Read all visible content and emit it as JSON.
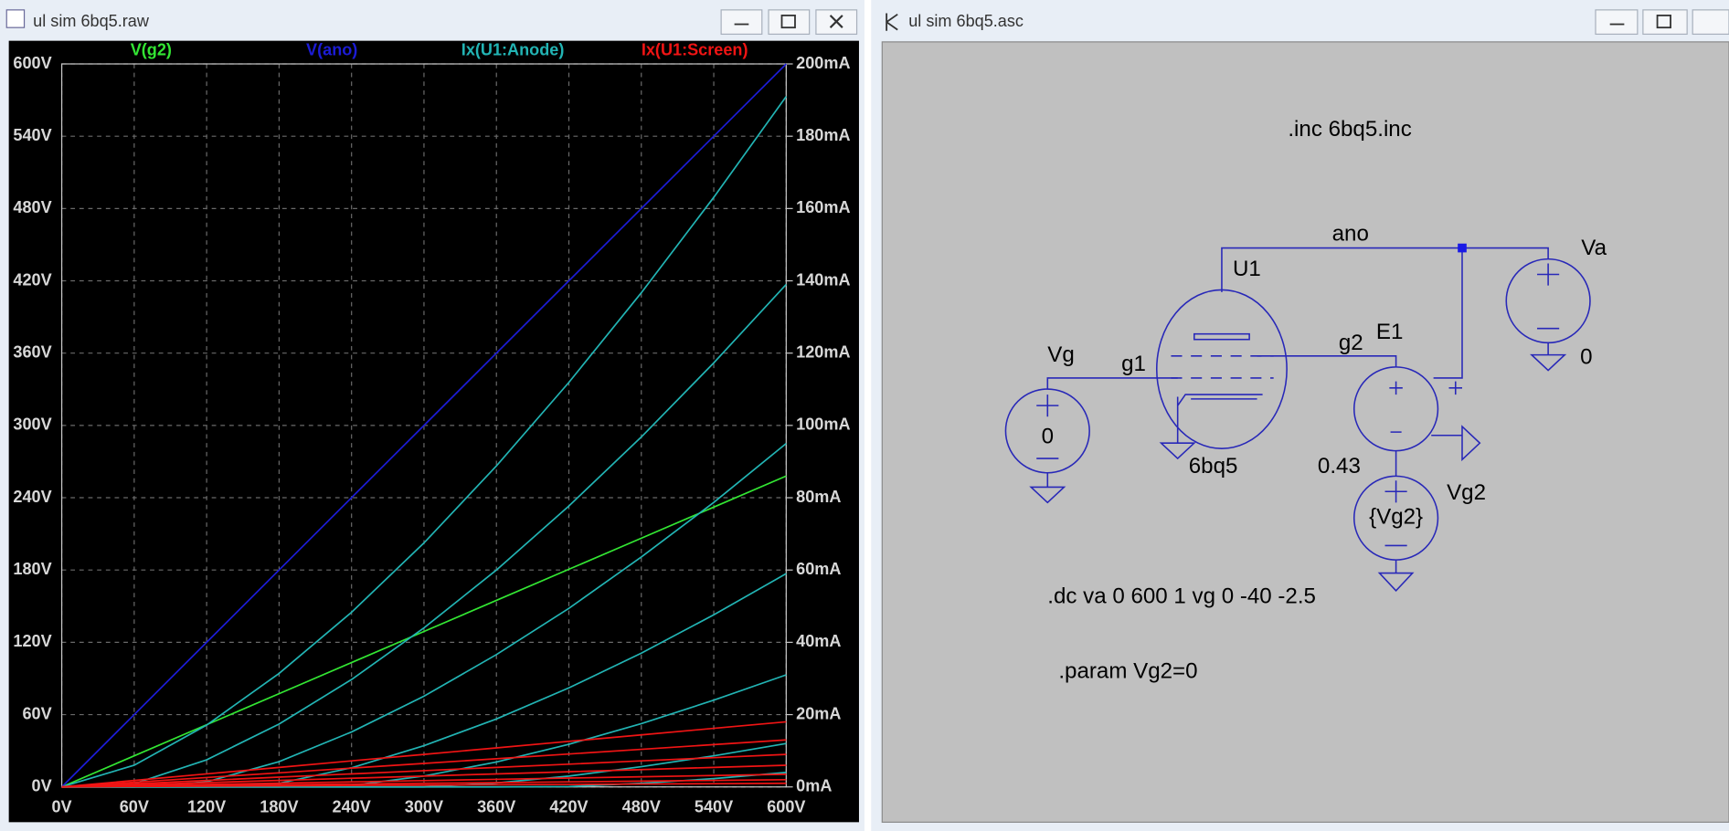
{
  "windows": [
    {
      "title": "ul sim 6bq5.raw"
    },
    {
      "title": "ul sim 6bq5.asc"
    }
  ],
  "chart_data": {
    "type": "line",
    "x": [
      0,
      60,
      120,
      180,
      240,
      300,
      360,
      420,
      480,
      540,
      600
    ],
    "xlim": [
      0,
      600
    ],
    "xticks": [
      {
        "value": 0,
        "label": "0V"
      },
      {
        "value": 60,
        "label": "60V"
      },
      {
        "value": 120,
        "label": "120V"
      },
      {
        "value": 180,
        "label": "180V"
      },
      {
        "value": 240,
        "label": "240V"
      },
      {
        "value": 300,
        "label": "300V"
      },
      {
        "value": 360,
        "label": "360V"
      },
      {
        "value": 420,
        "label": "420V"
      },
      {
        "value": 480,
        "label": "480V"
      },
      {
        "value": 540,
        "label": "540V"
      },
      {
        "value": 600,
        "label": "600V"
      }
    ],
    "ylim": [
      0,
      600
    ],
    "yticks": [
      {
        "value": 0,
        "label": "0V"
      },
      {
        "value": 60,
        "label": "60V"
      },
      {
        "value": 120,
        "label": "120V"
      },
      {
        "value": 180,
        "label": "180V"
      },
      {
        "value": 240,
        "label": "240V"
      },
      {
        "value": 300,
        "label": "300V"
      },
      {
        "value": 360,
        "label": "360V"
      },
      {
        "value": 420,
        "label": "420V"
      },
      {
        "value": 480,
        "label": "480V"
      },
      {
        "value": 540,
        "label": "540V"
      },
      {
        "value": 600,
        "label": "600V"
      }
    ],
    "y2lim": [
      0,
      200
    ],
    "y2ticks": [
      {
        "value": 0,
        "label": "0mA"
      },
      {
        "value": 20,
        "label": "20mA"
      },
      {
        "value": 40,
        "label": "40mA"
      },
      {
        "value": 60,
        "label": "60mA"
      },
      {
        "value": 80,
        "label": "80mA"
      },
      {
        "value": 100,
        "label": "100mA"
      },
      {
        "value": 120,
        "label": "120mA"
      },
      {
        "value": 140,
        "label": "140mA"
      },
      {
        "value": 160,
        "label": "160mA"
      },
      {
        "value": 180,
        "label": "180mA"
      },
      {
        "value": 200,
        "label": "200mA"
      }
    ],
    "grid": true,
    "series": [
      {
        "name": "V(g2)",
        "color": "#33e633",
        "values": [
          0,
          25.8,
          51.6,
          77.4,
          103.2,
          129,
          154.8,
          180.6,
          206.4,
          232.2,
          258
        ]
      },
      {
        "name": "V(ano)",
        "color": "#1c1cd6",
        "values": [
          0,
          60,
          120,
          180,
          240,
          300,
          360,
          420,
          480,
          540,
          600
        ]
      },
      {
        "name": "Ix(U1:Anode)",
        "color": "#22b4b4",
        "axis": "y2",
        "values": [
          [
            0,
            6,
            17.1,
            31.4,
            48.3,
            67.5,
            88.8,
            111.9,
            136.7,
            163.1,
            191
          ],
          [
            0,
            0.9,
            7.5,
            17.4,
            29.7,
            44,
            60,
            77.7,
            96.8,
            117.3,
            139
          ],
          [
            0,
            0,
            1.4,
            7,
            15.2,
            25.1,
            36.6,
            49.4,
            63.6,
            78.7,
            95
          ],
          [
            0,
            0,
            0,
            1,
            5.3,
            11.4,
            18.8,
            27.4,
            37,
            47.6,
            59
          ],
          [
            0,
            0,
            0,
            0,
            0.4,
            3,
            6.9,
            11.8,
            17.5,
            24,
            31
          ],
          [
            0,
            0,
            0,
            0,
            0,
            0,
            1.1,
            3,
            5.6,
            8.6,
            12
          ],
          [
            0,
            0,
            0,
            0,
            0,
            0,
            0,
            0.1,
            1,
            2.3,
            4
          ]
        ]
      },
      {
        "name": "Ix(U1:Screen)",
        "color": "#f01414",
        "axis": "y2",
        "values": [
          [
            0,
            1.8,
            3.6,
            5.4,
            7.2,
            9,
            10.8,
            12.6,
            14.4,
            16.2,
            18
          ],
          [
            0,
            1.3,
            2.6,
            3.9,
            5.2,
            6.5,
            7.8,
            9.1,
            10.4,
            11.7,
            13
          ],
          [
            0,
            0.9,
            1.8,
            2.7,
            3.6,
            4.5,
            5.4,
            6.3,
            7.2,
            8.1,
            9
          ],
          [
            0,
            0.6,
            1.2,
            1.8,
            2.4,
            3,
            3.6,
            4.2,
            4.8,
            5.4,
            6
          ],
          [
            0,
            0.35,
            0.7,
            1.05,
            1.4,
            1.75,
            2.1,
            2.45,
            2.8,
            3.15,
            3.5
          ],
          [
            0,
            0.2,
            0.4,
            0.6,
            0.8,
            1,
            1.2,
            1.4,
            1.6,
            1.8,
            2
          ],
          [
            0,
            0.1,
            0.2,
            0.3,
            0.4,
            0.5,
            0.6,
            0.7,
            0.8,
            0.9,
            1
          ]
        ]
      }
    ]
  },
  "schematic": {
    "directive_inc": ".inc 6bq5.inc",
    "net_ano": "ano",
    "tube_name": "U1",
    "tube_model": "6bq5",
    "va_name": "Va",
    "va_value": "0",
    "vg_name": "Vg",
    "vg_value": "0",
    "net_g1": "g1",
    "net_g2": "g2",
    "e1_name": "E1",
    "e1_gain": "0.43",
    "vg2_name": "Vg2",
    "vg2_value": "{Vg2}",
    "directive_dc": ".dc va 0 600 1 vg 0 -40 -2.5",
    "directive_param": ".param Vg2=0"
  }
}
